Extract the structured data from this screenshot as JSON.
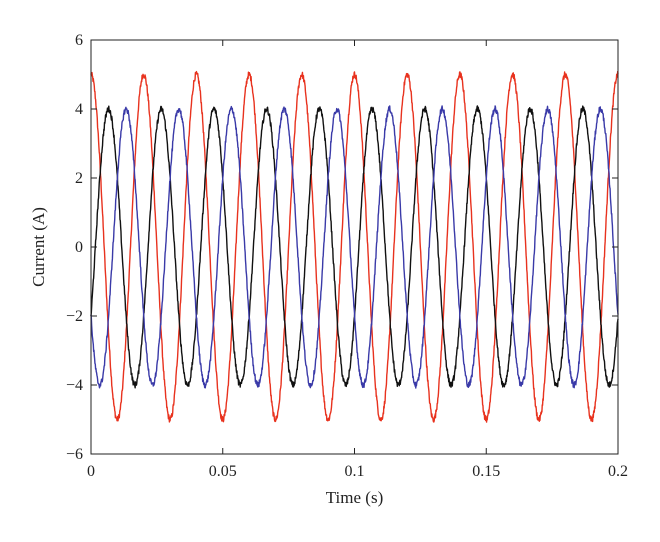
{
  "chart_data": {
    "type": "line",
    "title": "",
    "xlabel": "Time (s)",
    "ylabel": "Current (A)",
    "xlim": [
      0,
      0.2
    ],
    "ylim": [
      -6,
      6
    ],
    "x_ticks": [
      0,
      0.05,
      0.1,
      0.15,
      0.2
    ],
    "x_tick_labels": [
      "0",
      "0.05",
      "0.1",
      "0.15",
      "0.2"
    ],
    "y_ticks": [
      -6,
      -4,
      -2,
      0,
      2,
      4,
      6
    ],
    "y_tick_labels": [
      "−6",
      "−4",
      "−2",
      "0",
      "2",
      "4",
      "6"
    ],
    "grid": false,
    "legend": "none",
    "series": [
      {
        "color": "#e8321e",
        "frequency_hz": 50,
        "amplitude_a": 5.0,
        "phase_deg": 90
      },
      {
        "color": "#111111",
        "frequency_hz": 50,
        "amplitude_a": 4.0,
        "phase_deg": -30
      },
      {
        "color": "#3a3aa8",
        "frequency_hz": 50,
        "amplitude_a": 4.0,
        "phase_deg": 210
      }
    ]
  }
}
